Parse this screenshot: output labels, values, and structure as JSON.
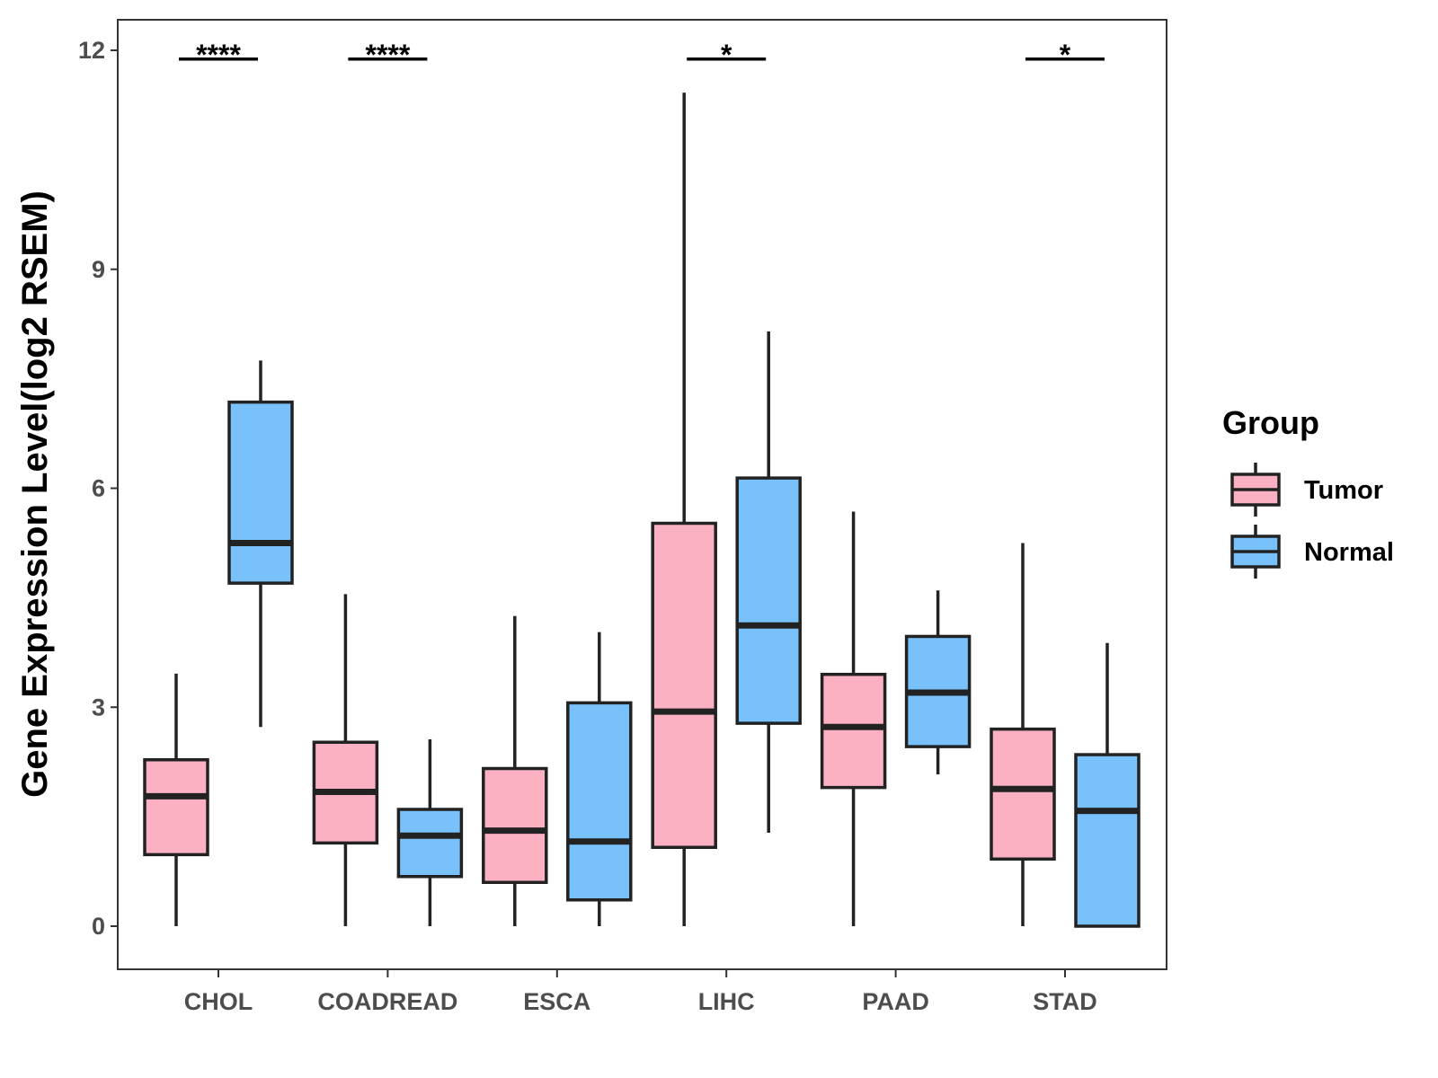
{
  "chart_data": {
    "type": "boxplot",
    "title": "",
    "xlabel": "",
    "ylabel": "Gene Expression Level(log2 RSEM)",
    "ylim": [
      -0.6,
      12.45
    ],
    "yticks": [
      0,
      3,
      6,
      9,
      12
    ],
    "ytick_labels": [
      "0",
      "3",
      "6",
      "9",
      "12"
    ],
    "categories": [
      "CHOL",
      "COADREAD",
      "ESCA",
      "LIHC",
      "PAAD",
      "STAD"
    ],
    "grid": false,
    "legend": {
      "title": "Group",
      "position": "right",
      "entries": [
        "Tumor",
        "Normal"
      ]
    },
    "colors": {
      "Tumor": "#fbb1c2",
      "Normal": "#79c1fa",
      "outline": "#222222"
    },
    "series": [
      {
        "name": "Tumor",
        "boxes": [
          {
            "category": "CHOL",
            "lower": 0.0,
            "q1": 0.98,
            "median": 1.78,
            "q3": 2.28,
            "upper": 3.46
          },
          {
            "category": "COADREAD",
            "lower": 0.0,
            "q1": 1.14,
            "median": 1.84,
            "q3": 2.52,
            "upper": 4.55
          },
          {
            "category": "ESCA",
            "lower": 0.0,
            "q1": 0.6,
            "median": 1.31,
            "q3": 2.16,
            "upper": 4.25
          },
          {
            "category": "LIHC",
            "lower": 0.0,
            "q1": 1.08,
            "median": 2.94,
            "q3": 5.52,
            "upper": 11.42
          },
          {
            "category": "PAAD",
            "lower": 0.0,
            "q1": 1.9,
            "median": 2.73,
            "q3": 3.45,
            "upper": 5.68
          },
          {
            "category": "STAD",
            "lower": 0.0,
            "q1": 0.92,
            "median": 1.88,
            "q3": 2.7,
            "upper": 5.25
          }
        ]
      },
      {
        "name": "Normal",
        "boxes": [
          {
            "category": "CHOL",
            "lower": 2.73,
            "q1": 4.7,
            "median": 5.25,
            "q3": 7.18,
            "upper": 7.75
          },
          {
            "category": "COADREAD",
            "lower": 0.0,
            "q1": 0.68,
            "median": 1.24,
            "q3": 1.6,
            "upper": 2.56
          },
          {
            "category": "ESCA",
            "lower": 0.0,
            "q1": 0.36,
            "median": 1.16,
            "q3": 3.06,
            "upper": 4.03
          },
          {
            "category": "LIHC",
            "lower": 1.28,
            "q1": 2.78,
            "median": 4.12,
            "q3": 6.14,
            "upper": 8.15
          },
          {
            "category": "PAAD",
            "lower": 2.08,
            "q1": 2.46,
            "median": 3.2,
            "q3": 3.97,
            "upper": 4.6
          },
          {
            "category": "STAD",
            "lower": 0.0,
            "q1": 0.0,
            "median": 1.58,
            "q3": 2.35,
            "upper": 3.88
          }
        ]
      }
    ],
    "annotations": [
      {
        "category": "CHOL",
        "label": "****",
        "y": 11.88
      },
      {
        "category": "COADREAD",
        "label": "****",
        "y": 11.88
      },
      {
        "category": "LIHC",
        "label": "*",
        "y": 11.88
      },
      {
        "category": "STAD",
        "label": "*",
        "y": 11.88
      }
    ]
  }
}
